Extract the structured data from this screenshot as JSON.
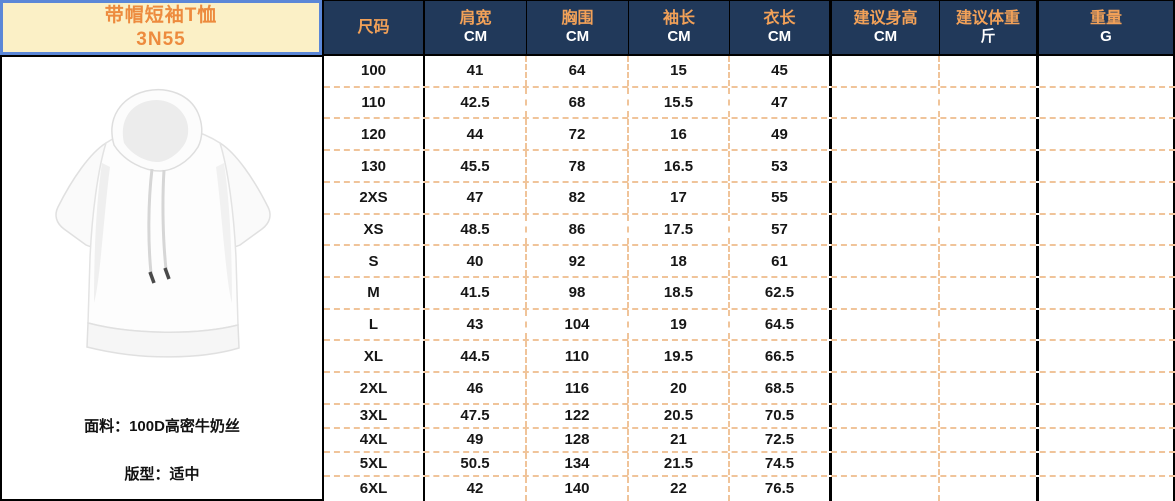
{
  "product": {
    "title_line1": "带帽短袖T恤",
    "title_line2": "3N55",
    "fabric": "面料：100D高密牛奶丝",
    "fit": "版型：适中"
  },
  "table": {
    "header": [
      {
        "label": "尺码",
        "unit": ""
      },
      {
        "label": "肩宽",
        "unit": "CM"
      },
      {
        "label": "胸围",
        "unit": "CM"
      },
      {
        "label": "袖长",
        "unit": "CM"
      },
      {
        "label": "衣长",
        "unit": "CM"
      },
      {
        "label": "建议身高",
        "unit": "CM"
      },
      {
        "label": "建议体重",
        "unit": "斤"
      },
      {
        "label": "重量",
        "unit": "G"
      }
    ],
    "rows": [
      [
        "100",
        "41",
        "64",
        "15",
        "45",
        "",
        "",
        ""
      ],
      [
        "110",
        "42.5",
        "68",
        "15.5",
        "47",
        "",
        "",
        ""
      ],
      [
        "120",
        "44",
        "72",
        "16",
        "49",
        "",
        "",
        ""
      ],
      [
        "130",
        "45.5",
        "78",
        "16.5",
        "53",
        "",
        "",
        ""
      ],
      [
        "2XS",
        "47",
        "82",
        "17",
        "55",
        "",
        "",
        ""
      ],
      [
        "XS",
        "48.5",
        "86",
        "17.5",
        "57",
        "",
        "",
        ""
      ],
      [
        "S",
        "40",
        "92",
        "18",
        "61",
        "",
        "",
        ""
      ],
      [
        "M",
        "41.5",
        "98",
        "18.5",
        "62.5",
        "",
        "",
        ""
      ],
      [
        "L",
        "43",
        "104",
        "19",
        "64.5",
        "",
        "",
        ""
      ],
      [
        "XL",
        "44.5",
        "110",
        "19.5",
        "66.5",
        "",
        "",
        ""
      ],
      [
        "2XL",
        "46",
        "116",
        "20",
        "68.5",
        "",
        "",
        ""
      ],
      [
        "3XL",
        "47.5",
        "122",
        "20.5",
        "70.5",
        "",
        "",
        ""
      ],
      [
        "4XL",
        "49",
        "128",
        "21",
        "72.5",
        "",
        "",
        ""
      ],
      [
        "5XL",
        "50.5",
        "134",
        "21.5",
        "74.5",
        "",
        "",
        ""
      ],
      [
        "6XL",
        "42",
        "140",
        "22",
        "76.5",
        "",
        "",
        ""
      ]
    ]
  },
  "colors": {
    "header-bg": "#21395a",
    "header-label": "#f2a158",
    "header-unit": "#ffffff",
    "title-text": "#ed8b3e",
    "banner-bg": "#fbf0c6",
    "banner-border": "#5b87d7",
    "grid-dashed": "#f0c49a",
    "grid-solid": "#000000",
    "cell-text": "#161616"
  }
}
